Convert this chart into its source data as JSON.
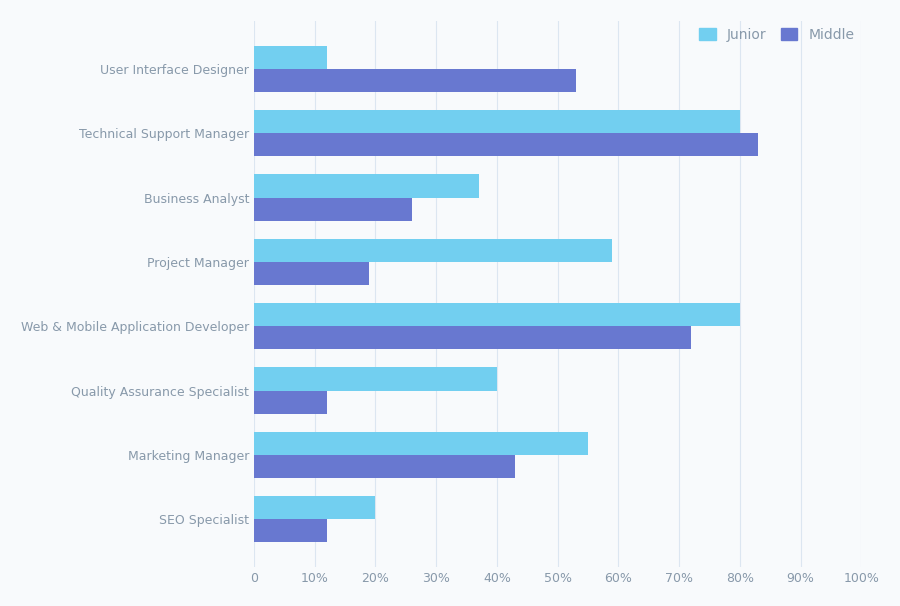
{
  "categories": [
    "User Interface Designer",
    "Technical Support Manager",
    "Business Analyst",
    "Project Manager",
    "Web & Mobile Application Developer",
    "Quality Assurance Specialist",
    "Marketing Manager",
    "SEO Specialist"
  ],
  "junior": [
    12,
    80,
    37,
    59,
    80,
    40,
    55,
    20
  ],
  "middle": [
    53,
    83,
    26,
    19,
    72,
    12,
    43,
    12
  ],
  "junior_color": "#72cff0",
  "middle_color": "#6878d0",
  "background_color": "#f8fafc",
  "grid_color": "#dce6f1",
  "xlim": [
    0,
    100
  ],
  "xtick_labels": [
    "0",
    "10%",
    "20%",
    "30%",
    "40%",
    "50%",
    "60%",
    "70%",
    "80%",
    "90%",
    "100%"
  ],
  "xtick_vals": [
    0,
    10,
    20,
    30,
    40,
    50,
    60,
    70,
    80,
    90,
    100
  ],
  "legend_labels": [
    "Junior",
    "Middle"
  ],
  "bar_height": 0.36,
  "label_fontsize": 9,
  "tick_fontsize": 9,
  "legend_fontsize": 10
}
